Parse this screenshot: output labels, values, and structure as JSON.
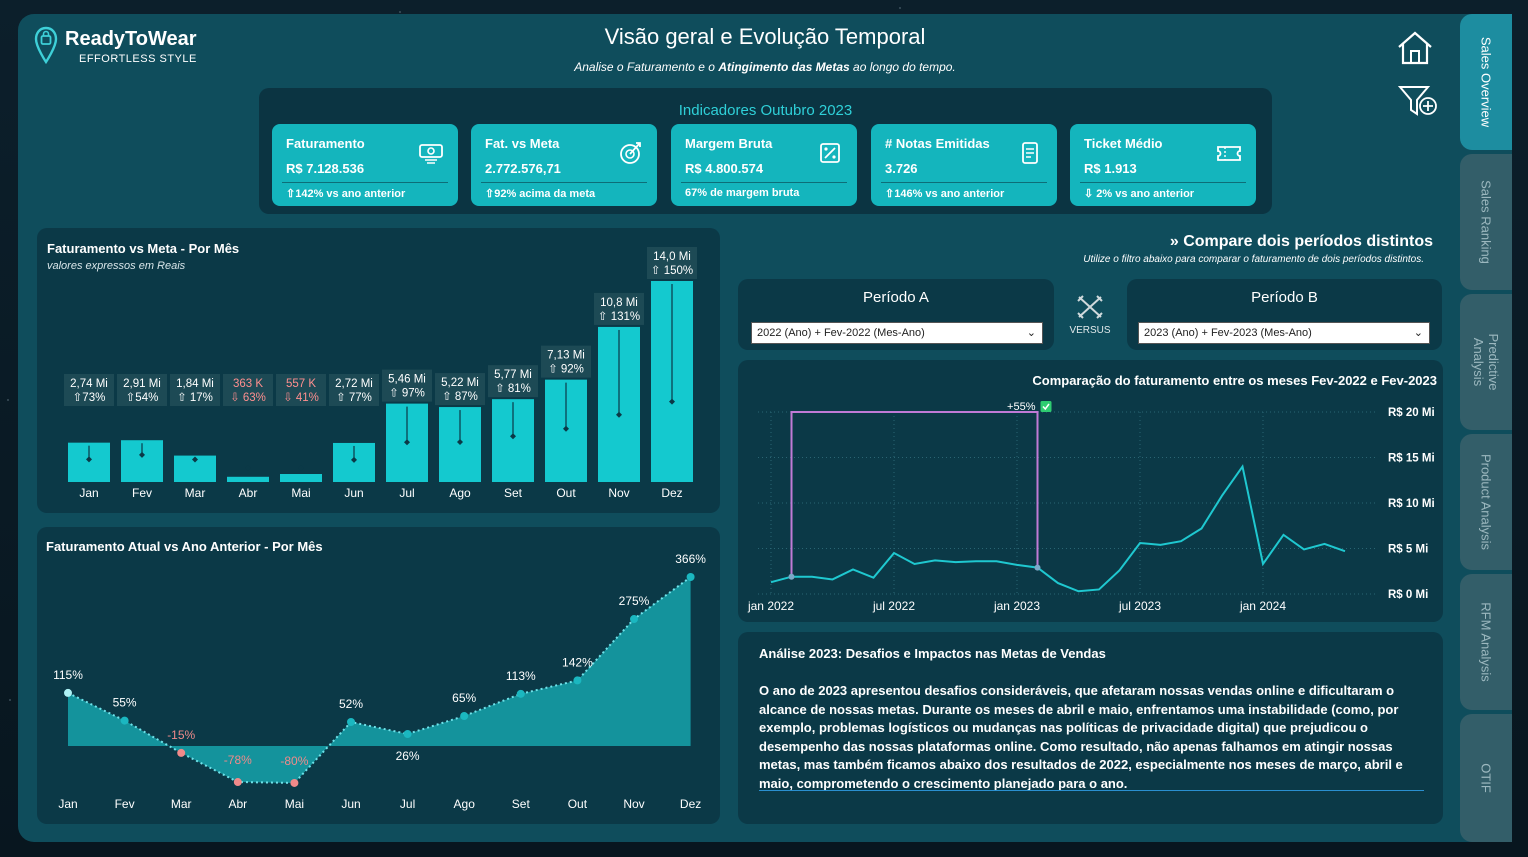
{
  "brand": {
    "name": "ReadyToWear",
    "tagline": "EFFORTLESS STYLE",
    "logo_icon": "location-pin-icon"
  },
  "header": {
    "title": "Visão geral e Evolução Temporal",
    "subtitle_prefix": "Analise o Faturamento e o ",
    "subtitle_bold": "Atingimento das Metas",
    "subtitle_suffix": " ao longo do tempo."
  },
  "kpi_section": {
    "title": "Indicadores Outubro 2023"
  },
  "kpis": [
    {
      "title": "Faturamento",
      "value": "R$ 7.128.536",
      "sub": "⇧142% vs ano anterior",
      "icon": "money-icon"
    },
    {
      "title": "Fat. vs Meta",
      "value": "2.772.576,71",
      "sub": "⇧92% acima da meta",
      "icon": "target-icon"
    },
    {
      "title": "Margem Bruta",
      "value": "R$ 4.800.574",
      "sub": "67% de margem bruta",
      "icon": "percent-icon"
    },
    {
      "title": "# Notas Emitidas",
      "value": "3.726",
      "sub": "⇧146% vs ano anterior",
      "icon": "document-icon"
    },
    {
      "title": "Ticket Médio",
      "value": "R$ 1.913",
      "sub": "⇩ 2% vs ano anterior",
      "icon": "ticket-icon"
    }
  ],
  "sidebar": {
    "tabs": [
      "Sales Overview",
      "Sales Ranking",
      "Predictive Analysis",
      "Product Analysis",
      "RFM Analysis",
      "OTIF"
    ]
  },
  "compare": {
    "title": "» Compare dois períodos distintos",
    "subtitle": "Utilize o filtro abaixo para comparar o faturamento de dois períodos distintos.",
    "periodA": {
      "label": "Período A",
      "value": "2022 (Ano) + Fev-2022 (Mes-Ano)"
    },
    "periodB": {
      "label": "Período B",
      "value": "2023 (Ano) + Fev-2023 (Mes-Ano)"
    },
    "versus": "VERSUS"
  },
  "analysis": {
    "title": "Análise 2023: Desafios e Impactos nas Metas de Vendas",
    "body": "O ano de 2023 apresentou desafios consideráveis, que afetaram nossas vendas online e dificultaram o alcance de nossas metas. Durante os meses de abril e maio, enfrentamos uma instabilidade (como, por exemplo, problemas logísticos ou mudanças nas políticas de privacidade digital) que prejudicou o desempenho das nossas plataformas online. Como resultado, não apenas falhamos em atingir nossas metas, mas também ficamos abaixo dos resultados de 2022, especialmente nos meses de março, abril e maio, comprometendo o crescimento planejado para o ano."
  },
  "chart_data": [
    {
      "type": "bar",
      "title": "Faturamento vs Meta - Por Mês",
      "subtitle": "valores expressos em Reais",
      "categories": [
        "Jan",
        "Fev",
        "Mar",
        "Abr",
        "Mai",
        "Jun",
        "Jul",
        "Ago",
        "Set",
        "Out",
        "Nov",
        "Dez"
      ],
      "values": [
        2.74,
        2.91,
        1.84,
        0.363,
        0.557,
        2.72,
        5.46,
        5.22,
        5.77,
        7.13,
        10.8,
        14.0
      ],
      "value_labels": [
        "2,74 Mi",
        "2,91 Mi",
        "1,84 Mi",
        "363 K",
        "557 K",
        "2,72 Mi",
        "5,46 Mi",
        "5,22 Mi",
        "5,77 Mi",
        "7,13 Mi",
        "10,8 Mi",
        "14,0 Mi"
      ],
      "meta_values": [
        1.58,
        1.89,
        1.57,
        0.98,
        0.95,
        1.54,
        2.77,
        2.79,
        3.19,
        3.71,
        4.68,
        5.6
      ],
      "pct_labels": [
        "⇧73%",
        "⇧54%",
        "⇧ 17%",
        "⇩ 63%",
        "⇩ 41%",
        "⇧ 77%",
        "⇧ 97%",
        "⇧ 87%",
        "⇧ 81%",
        "⇧ 92%",
        "⇧ 131%",
        "⇧ 150%"
      ],
      "above_target": [
        true,
        true,
        true,
        false,
        false,
        true,
        true,
        true,
        true,
        true,
        true,
        true
      ],
      "colors": {
        "bar": "#14c9cf",
        "label_ok": "#ffffff",
        "label_bad": "#ff8f8f"
      }
    },
    {
      "type": "area",
      "title": "Faturamento Atual vs Ano Anterior - Por Mês",
      "categories": [
        "Jan",
        "Fev",
        "Mar",
        "Abr",
        "Mai",
        "Jun",
        "Jul",
        "Ago",
        "Set",
        "Out",
        "Nov",
        "Dez"
      ],
      "values": [
        115,
        55,
        -15,
        -78,
        -80,
        52,
        26,
        65,
        113,
        142,
        275,
        366
      ],
      "value_labels": [
        "115%",
        "55%",
        "-15%",
        "-78%",
        "-80%",
        "52%",
        "26%",
        "65%",
        "113%",
        "142%",
        "275%",
        "366%"
      ],
      "colors": {
        "area": "#14939c",
        "negative": "#f08a8a"
      }
    },
    {
      "type": "line",
      "title": "Comparação do faturamento entre os meses Fev-2022 e Fev-2023",
      "x_ticks": [
        "jan 2022",
        "jul 2022",
        "jan 2023",
        "jul 2023",
        "jan 2024"
      ],
      "y_ticks": [
        "R$ 0 Mi",
        "R$ 5 Mi",
        "R$ 10 Mi",
        "R$ 15 Mi",
        "R$ 20 Mi"
      ],
      "ylim": [
        0,
        20
      ],
      "x_months": [
        "2022-01",
        "2022-02",
        "2022-03",
        "2022-04",
        "2022-05",
        "2022-06",
        "2022-07",
        "2022-08",
        "2022-09",
        "2022-10",
        "2022-11",
        "2022-12",
        "2023-01",
        "2023-02",
        "2023-03",
        "2023-04",
        "2023-05",
        "2023-06",
        "2023-07",
        "2023-08",
        "2023-09",
        "2023-10",
        "2023-11",
        "2023-12",
        "2024-01",
        "2024-02",
        "2024-03",
        "2024-04",
        "2024-05"
      ],
      "values": [
        1.3,
        1.9,
        1.9,
        1.6,
        2.7,
        1.8,
        4.5,
        3.3,
        3.7,
        3.5,
        3.6,
        3.6,
        3.2,
        2.9,
        1.2,
        0.3,
        0.5,
        2.6,
        5.6,
        5.4,
        5.8,
        7.2,
        10.8,
        14.0,
        3.3,
        6.5,
        4.9,
        5.5,
        4.7
      ],
      "comparison": {
        "from": "2022-02",
        "to": "2023-02",
        "from_value": 1.9,
        "to_value": 2.9,
        "bracket_level": 20,
        "label": "+55%"
      },
      "colors": {
        "line": "#1fc8d0",
        "bracket": "#c07ad6",
        "check": "#2ecc71"
      }
    }
  ]
}
